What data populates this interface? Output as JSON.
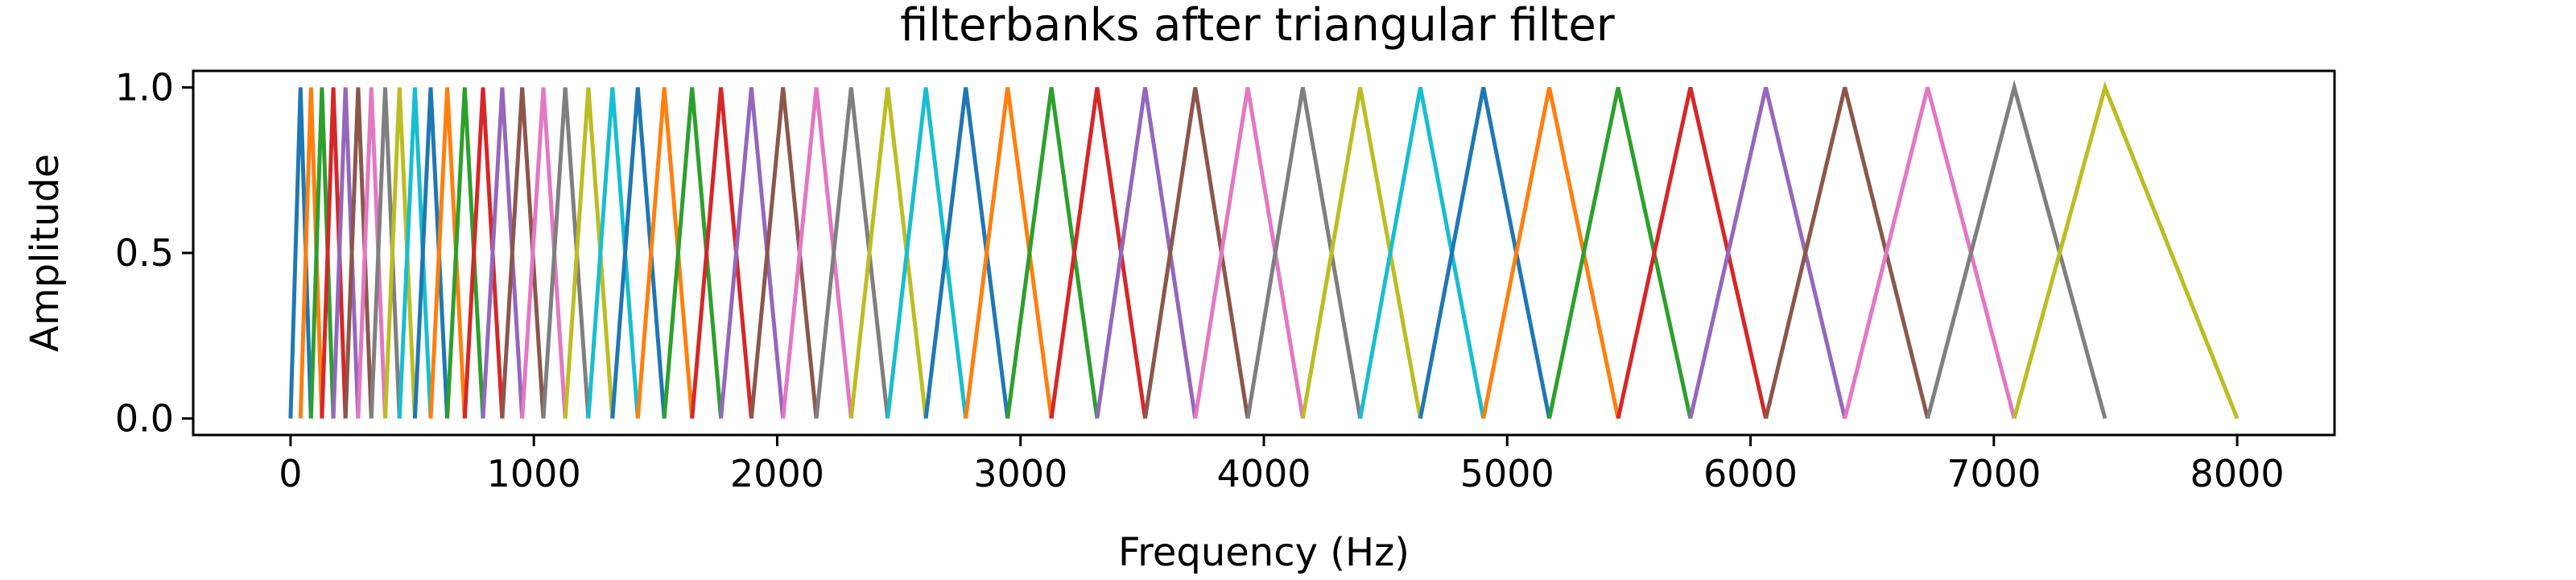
{
  "chart_data": {
    "type": "line",
    "title": "filterbanks after triangular filter",
    "xlabel": "Frequency (Hz)",
    "ylabel": "Amplitude",
    "xlim": [
      -400,
      8400
    ],
    "ylim": [
      -0.05,
      1.05
    ],
    "xticks": [
      0,
      1000,
      2000,
      3000,
      4000,
      5000,
      6000,
      7000,
      8000
    ],
    "xtick_labels": [
      "0",
      "1000",
      "2000",
      "3000",
      "4000",
      "5000",
      "6000",
      "7000",
      "8000"
    ],
    "yticks": [
      0.0,
      0.5,
      1.0
    ],
    "ytick_labels": [
      "0.0",
      "0.5",
      "1.0"
    ],
    "grid": false,
    "filter_edges_hz": [
      0,
      41,
      84,
      129,
      176,
      226,
      278,
      332,
      389,
      448,
      511,
      576,
      644,
      716,
      791,
      870,
      952,
      1039,
      1129,
      1224,
      1323,
      1427,
      1536,
      1650,
      1769,
      1894,
      2024,
      2161,
      2304,
      2454,
      2611,
      2775,
      2947,
      3127,
      3315,
      3512,
      3718,
      3934,
      4160,
      4396,
      4643,
      4902,
      5173,
      5456,
      5753,
      6063,
      6388,
      6728,
      7084,
      7457,
      8000
    ],
    "series_colors": [
      "#1f77b4",
      "#ff7f0e",
      "#2ca02c",
      "#d62728",
      "#9467bd",
      "#8c564b",
      "#e377c2",
      "#7f7f7f",
      "#bcbd22",
      "#17becf"
    ]
  }
}
